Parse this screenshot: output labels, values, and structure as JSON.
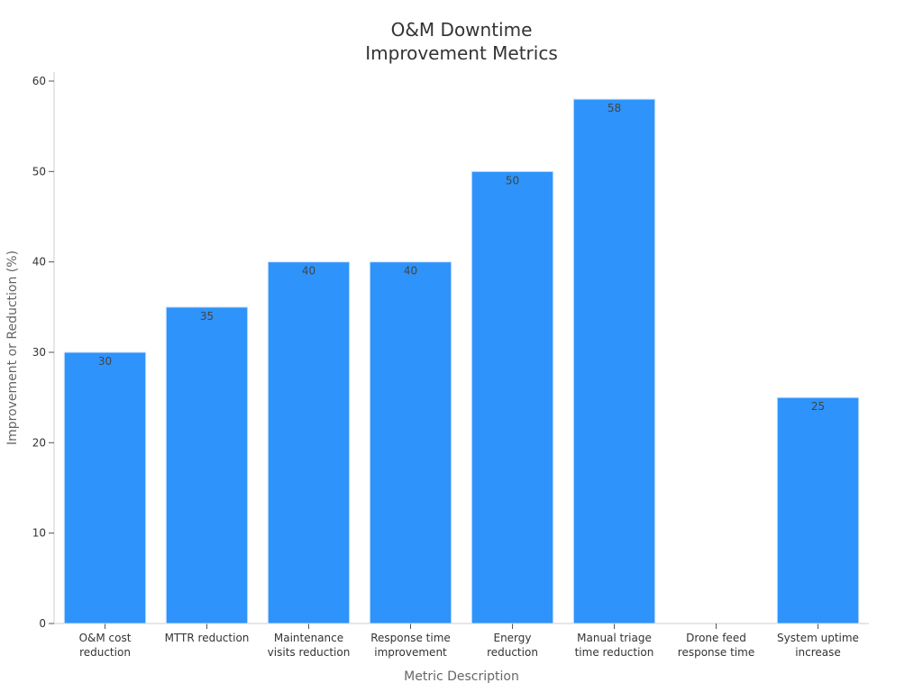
{
  "chart_data": {
    "type": "bar",
    "title_lines": [
      "O&M Downtime",
      "Improvement Metrics"
    ],
    "xlabel": "Metric Description",
    "ylabel": "Improvement or Reduction (%)",
    "ylim": [
      0,
      60
    ],
    "yticks": [
      0,
      10,
      20,
      30,
      40,
      50,
      60
    ],
    "grid": false,
    "categories": [
      [
        "O&M cost",
        "reduction"
      ],
      [
        "MTTR reduction"
      ],
      [
        "Maintenance",
        "visits reduction"
      ],
      [
        "Response time",
        "improvement"
      ],
      [
        "Energy",
        "reduction"
      ],
      [
        "Manual triage",
        "time reduction"
      ],
      [
        "Drone feed",
        "response time"
      ],
      [
        "System uptime",
        "increase"
      ]
    ],
    "values": [
      30,
      35,
      40,
      40,
      50,
      58,
      null,
      25
    ],
    "bar_color": "#2e93fa",
    "bar_edge_color": "#cfe3fb"
  }
}
